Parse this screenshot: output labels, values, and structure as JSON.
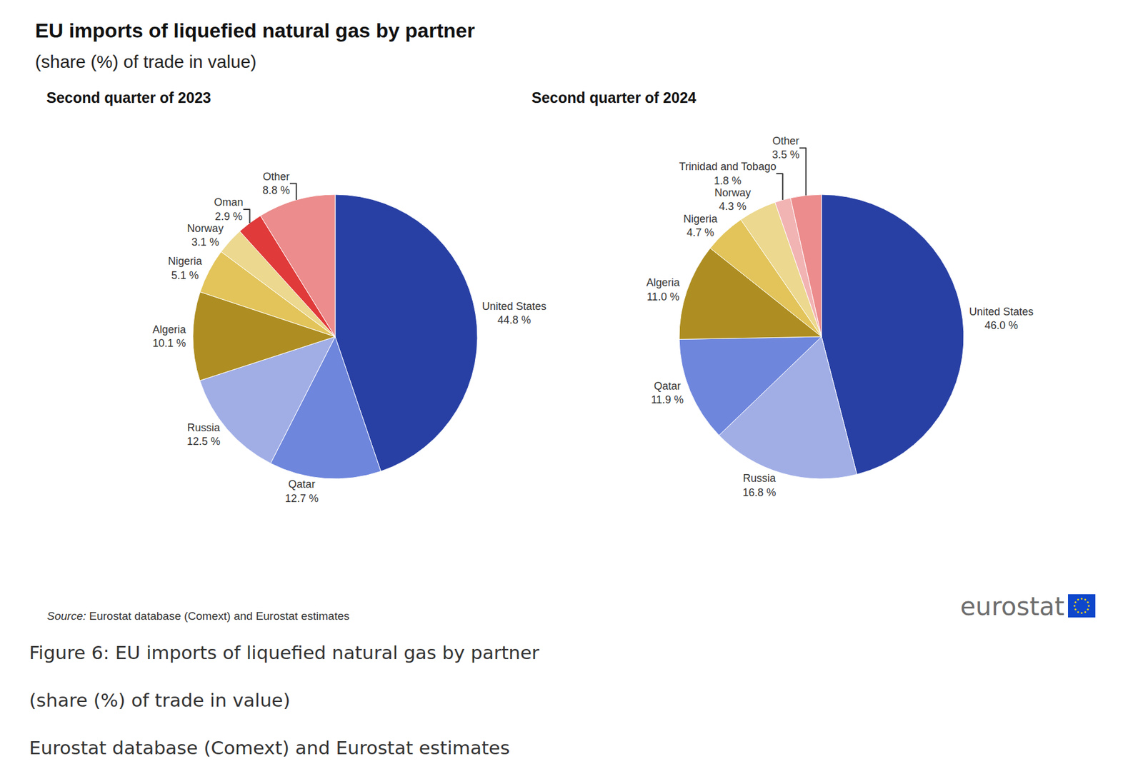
{
  "header": {
    "title": "EU imports of liquefied natural gas by partner",
    "subtitle": "(share (%) of trade in value)"
  },
  "chart_data": [
    {
      "type": "pie",
      "title": "Second quarter of 2023",
      "categories": [
        "United States",
        "Qatar",
        "Russia",
        "Algeria",
        "Nigeria",
        "Norway",
        "Oman",
        "Other"
      ],
      "values": [
        44.8,
        12.7,
        12.5,
        10.1,
        5.1,
        3.1,
        2.9,
        8.8
      ],
      "value_labels": [
        "44.8 %",
        "12.7 %",
        "12.5 %",
        "10.1 %",
        "5.1 %",
        "3.1 %",
        "2.9 %",
        "8.8 %"
      ],
      "colors": [
        "#2840a4",
        "#6e86dc",
        "#a1aee6",
        "#ae8e22",
        "#e2c45a",
        "#ecd88e",
        "#e03a3a",
        "#ec8c8c"
      ],
      "data_labels": true
    },
    {
      "type": "pie",
      "title": "Second quarter of 2024",
      "categories": [
        "United States",
        "Russia",
        "Qatar",
        "Algeria",
        "Nigeria",
        "Norway",
        "Trinidad and Tobago",
        "Other"
      ],
      "values": [
        46.0,
        16.8,
        11.9,
        11.0,
        4.7,
        4.3,
        1.8,
        3.5
      ],
      "value_labels": [
        "46.0 %",
        "16.8 %",
        "11.9 %",
        "11.0 %",
        "4.7 %",
        "4.3 %",
        "1.8 %",
        "3.5 %"
      ],
      "colors": [
        "#2840a4",
        "#a1aee6",
        "#6e86dc",
        "#ae8e22",
        "#e2c45a",
        "#ecd88e",
        "#f2b3b3",
        "#ec8c8c"
      ],
      "data_labels": true
    }
  ],
  "footer": {
    "source_label": "Source:",
    "source": "Eurostat database (Comext) and Eurostat estimates",
    "logo": "eurostat"
  },
  "caption": [
    "Figure 6: EU imports of liquefied natural gas by partner",
    "(share (%) of trade in value)",
    "Eurostat database (Comext) and Eurostat estimates"
  ]
}
